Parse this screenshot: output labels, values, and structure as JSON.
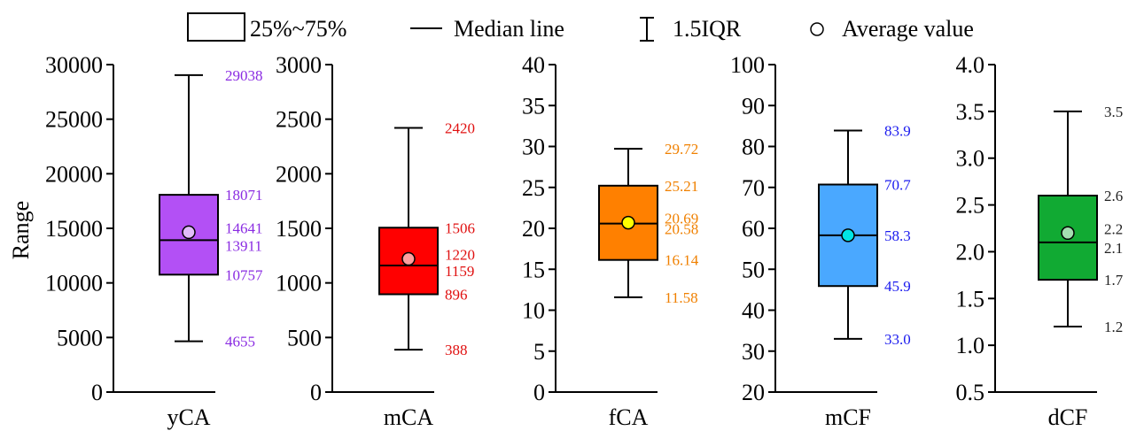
{
  "legend": {
    "box_label": "25%~75%",
    "median_label": "Median line",
    "iqr_label": "1.5IQR",
    "average_label": "Average value"
  },
  "y_axis_title": "Range",
  "chart_data": [
    {
      "type": "box",
      "xlabel": "yCA",
      "ylabel": "Range",
      "ylim": [
        0,
        30000
      ],
      "yticks": [
        "0",
        "5000",
        "10000",
        "15000",
        "20000",
        "25000",
        "30000"
      ],
      "color": "#b350f5",
      "label_color": "#8a2be2",
      "whisker_low": 4655,
      "q1": 10757,
      "median": 13911,
      "mean": 14641,
      "q3": 18071,
      "whisker_high": 29038,
      "labels": {
        "whisker_high": "29038",
        "q3": "18071",
        "mean": "14641",
        "median": "13911",
        "q1": "10757",
        "whisker_low": "4655"
      }
    },
    {
      "type": "box",
      "xlabel": "mCA",
      "ylim": [
        0,
        3000
      ],
      "yticks": [
        "0",
        "500",
        "1000",
        "1500",
        "2000",
        "2500",
        "3000"
      ],
      "color": "#ff0000",
      "label_color": "#e01010",
      "whisker_low": 388,
      "q1": 896,
      "median": 1159,
      "mean": 1220,
      "q3": 1506,
      "whisker_high": 2420,
      "labels": {
        "whisker_high": "2420",
        "q3": "1506",
        "mean": "1220",
        "median": "1159",
        "q1": "896",
        "whisker_low": "388"
      }
    },
    {
      "type": "box",
      "xlabel": "fCA",
      "ylim": [
        0,
        40
      ],
      "yticks": [
        "0",
        "5",
        "10",
        "15",
        "20",
        "25",
        "30",
        "35",
        "40"
      ],
      "color": "#ff8000",
      "label_color": "#f08000",
      "mean_color": "#ffff00",
      "whisker_low": 11.58,
      "q1": 16.14,
      "median": 20.58,
      "mean": 20.69,
      "q3": 25.21,
      "whisker_high": 29.72,
      "labels": {
        "whisker_high": "29.72",
        "q3": "25.21",
        "mean": "20.69",
        "median": "20.58",
        "q1": "16.14",
        "whisker_low": "11.58"
      }
    },
    {
      "type": "box",
      "xlabel": "mCF",
      "ylim": [
        20,
        100
      ],
      "yticks": [
        "20",
        "30",
        "40",
        "50",
        "60",
        "70",
        "80",
        "90",
        "100"
      ],
      "color": "#4aa8ff",
      "label_color": "#1a1aee",
      "mean_color": "#00e5e5",
      "whisker_low": 33.0,
      "q1": 45.9,
      "median": 58.3,
      "mean": 58.3,
      "q3": 70.7,
      "whisker_high": 83.9,
      "labels": {
        "whisker_high": "83.9",
        "q3": "70.7",
        "median": "58.3",
        "q1": "45.9",
        "whisker_low": "33.0"
      }
    },
    {
      "type": "box",
      "xlabel": "dCF",
      "ylim": [
        0.5,
        4.0
      ],
      "yticks": [
        "0.5",
        "1.0",
        "1.5",
        "2.0",
        "2.5",
        "3.0",
        "3.5",
        "4.0"
      ],
      "color": "#11aa33",
      "label_color": "#222222",
      "whisker_low": 1.2,
      "q1": 1.7,
      "median": 2.1,
      "mean": 2.2,
      "q3": 2.6,
      "whisker_high": 3.5,
      "labels": {
        "whisker_high": "3.5",
        "q3": "2.6",
        "mean": "2.2",
        "median": "2.1",
        "q1": "1.7",
        "whisker_low": "1.2"
      }
    }
  ]
}
